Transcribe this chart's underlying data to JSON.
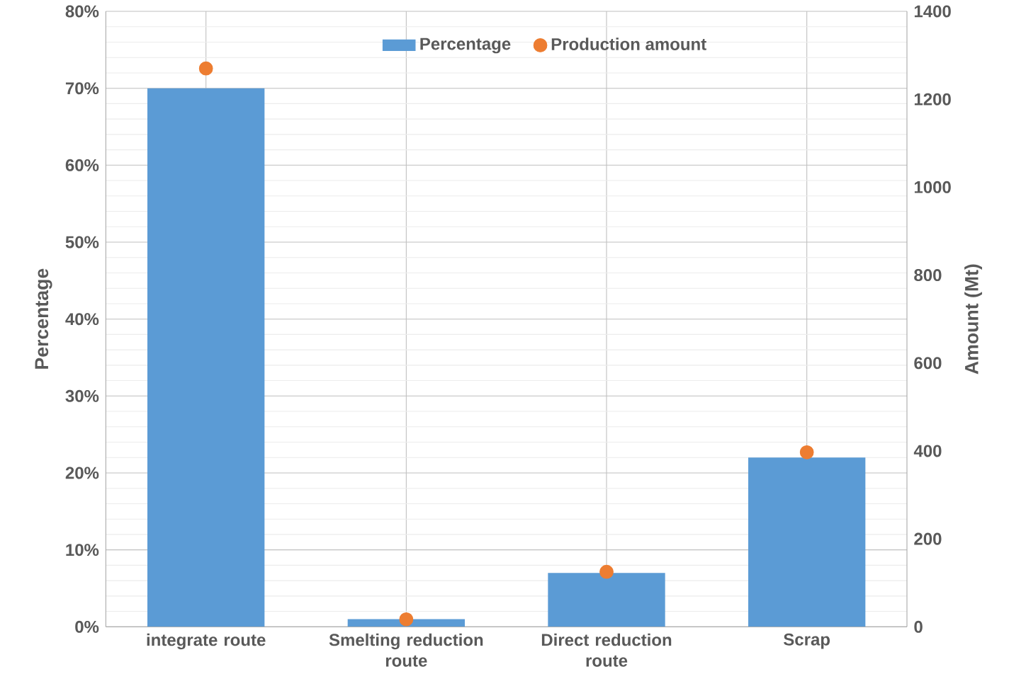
{
  "chart_data": {
    "type": "bar",
    "categories": [
      "integrate route",
      "Smelting reduction route",
      "Direct reduction route",
      "Scrap"
    ],
    "series": [
      {
        "name": "Percentage",
        "type": "bar",
        "color": "#5b9bd5",
        "values": [
          70,
          1,
          7,
          22
        ]
      },
      {
        "name": "Production amount",
        "type": "scatter",
        "axis": "y2",
        "color": "#ed7d31",
        "values": [
          1270,
          17,
          125,
          397
        ]
      }
    ],
    "ylabel": "Percentage",
    "y2label": "Amount (Mt)",
    "ylim": [
      0,
      80
    ],
    "yticks": [
      {
        "value": 0,
        "label": "0%"
      },
      {
        "value": 10,
        "label": "10%"
      },
      {
        "value": 20,
        "label": "20%"
      },
      {
        "value": 30,
        "label": "30%"
      },
      {
        "value": 40,
        "label": "40%"
      },
      {
        "value": 50,
        "label": "50%"
      },
      {
        "value": 60,
        "label": "60%"
      },
      {
        "value": 70,
        "label": "70%"
      },
      {
        "value": 80,
        "label": "80%"
      }
    ],
    "y2lim": [
      0,
      1400
    ],
    "y2ticks": [
      0,
      200,
      400,
      600,
      800,
      1000,
      1200,
      1400
    ],
    "grid": true,
    "legend": "top"
  }
}
